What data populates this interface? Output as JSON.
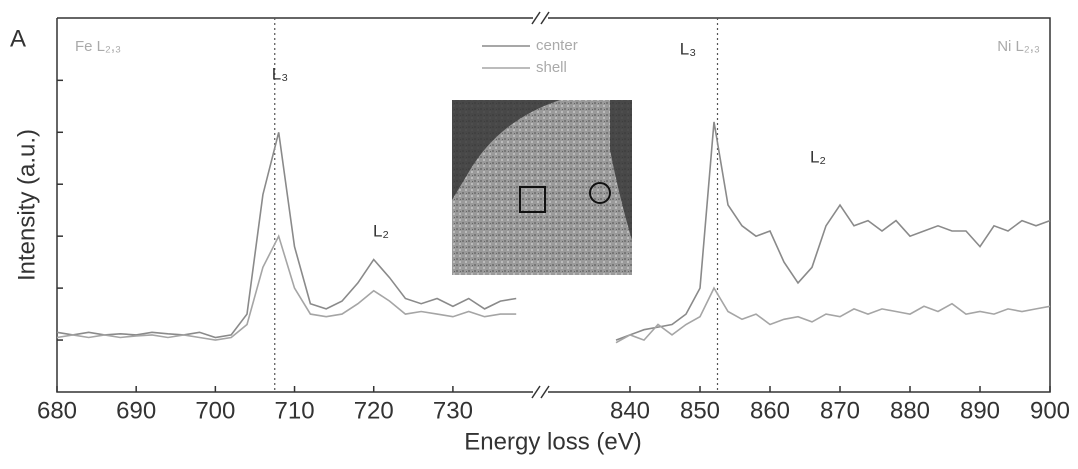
{
  "chart_data": [
    {
      "type": "line",
      "panel_label": "A",
      "ylabel": "Intensity (a.u.)",
      "legend_loc": "upper center",
      "xlim": [
        680,
        741
      ],
      "xticks": [
        680,
        690,
        700,
        710,
        720,
        730
      ],
      "ylim": [
        0,
        7.2
      ],
      "yticks": [
        1,
        2,
        3,
        4,
        5,
        6
      ],
      "vlines": [
        707.5
      ],
      "annotations": [
        "Fe L₂,₃",
        "L₃",
        "L₂"
      ],
      "x": [
        680,
        682,
        684,
        686,
        688,
        690,
        692,
        694,
        696,
        698,
        700,
        702,
        704,
        706,
        708,
        710,
        712,
        714,
        716,
        718,
        720,
        722,
        724,
        726,
        728,
        730,
        732,
        734,
        736,
        738
      ],
      "series": [
        {
          "name": "center",
          "color": "#8a8a8a",
          "values": [
            1.15,
            1.1,
            1.15,
            1.1,
            1.12,
            1.1,
            1.15,
            1.12,
            1.1,
            1.15,
            1.05,
            1.1,
            1.5,
            3.8,
            5.0,
            2.8,
            1.7,
            1.6,
            1.75,
            2.1,
            2.55,
            2.2,
            1.8,
            1.7,
            1.8,
            1.65,
            1.8,
            1.6,
            1.75,
            1.8
          ]
        },
        {
          "name": "shell",
          "color": "#a5a5a5",
          "values": [
            1.05,
            1.1,
            1.05,
            1.1,
            1.05,
            1.08,
            1.1,
            1.05,
            1.1,
            1.05,
            1.0,
            1.05,
            1.3,
            2.4,
            3.0,
            2.0,
            1.5,
            1.45,
            1.5,
            1.7,
            1.95,
            1.75,
            1.5,
            1.55,
            1.5,
            1.45,
            1.55,
            1.45,
            1.5,
            1.5
          ]
        }
      ]
    },
    {
      "type": "line",
      "xlabel": "Energy loss (eV)",
      "xlim": [
        828,
        900
      ],
      "xticks": [
        840,
        850,
        860,
        870,
        880,
        890,
        900
      ],
      "ylim": [
        0,
        7.2
      ],
      "yticks": [
        1,
        2,
        3,
        4,
        5,
        6
      ],
      "vlines": [
        852.5
      ],
      "annotations": [
        "Ni L₂,₃",
        "L₃",
        "L₂"
      ],
      "x": [
        838,
        840,
        842,
        844,
        846,
        848,
        850,
        852,
        854,
        856,
        858,
        860,
        862,
        864,
        866,
        868,
        870,
        872,
        874,
        876,
        878,
        880,
        882,
        884,
        886,
        888,
        890,
        892,
        894,
        896,
        898,
        900
      ],
      "series": [
        {
          "name": "center",
          "color": "#8a8a8a",
          "values": [
            1.0,
            1.1,
            1.2,
            1.25,
            1.3,
            1.5,
            2.0,
            5.2,
            3.6,
            3.2,
            3.0,
            3.1,
            2.5,
            2.1,
            2.4,
            3.2,
            3.6,
            3.2,
            3.3,
            3.1,
            3.3,
            3.0,
            3.1,
            3.2,
            3.1,
            3.1,
            2.8,
            3.2,
            3.1,
            3.3,
            3.2,
            3.3
          ]
        },
        {
          "name": "shell",
          "color": "#a5a5a5",
          "values": [
            0.95,
            1.1,
            1.0,
            1.3,
            1.1,
            1.3,
            1.45,
            2.0,
            1.55,
            1.4,
            1.5,
            1.3,
            1.4,
            1.45,
            1.35,
            1.5,
            1.45,
            1.6,
            1.5,
            1.6,
            1.55,
            1.5,
            1.65,
            1.55,
            1.7,
            1.5,
            1.55,
            1.5,
            1.6,
            1.55,
            1.6,
            1.65
          ]
        }
      ]
    }
  ]
}
